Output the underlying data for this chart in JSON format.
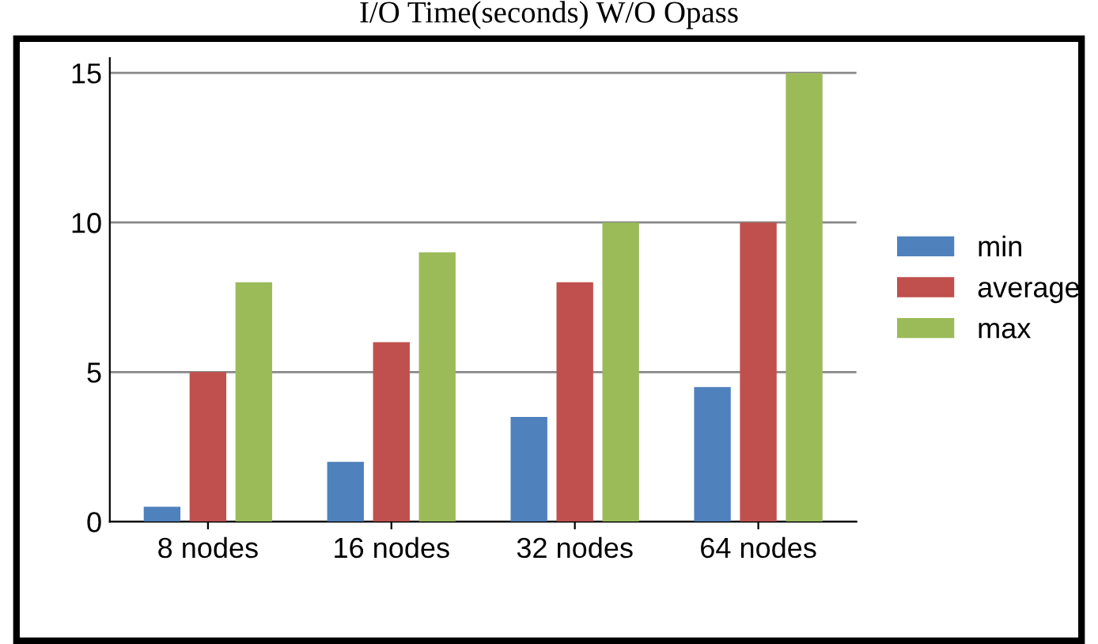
{
  "chart_data": {
    "type": "bar",
    "title": "I/O Time(seconds) W/O Opass",
    "categories": [
      "8 nodes",
      "16 nodes",
      "32 nodes",
      "64 nodes"
    ],
    "series": [
      {
        "name": "min",
        "color": "#4f81bd",
        "values": [
          0.5,
          2,
          3.5,
          4.5
        ]
      },
      {
        "name": "average",
        "color": "#c0504d",
        "values": [
          5,
          6,
          8,
          10
        ]
      },
      {
        "name": "max",
        "color": "#9bbb59",
        "values": [
          8,
          9,
          10,
          15
        ]
      }
    ],
    "ylim": [
      0,
      15.5
    ],
    "yticks": [
      0,
      5,
      10,
      15
    ],
    "grid": "y",
    "legend": "right"
  }
}
